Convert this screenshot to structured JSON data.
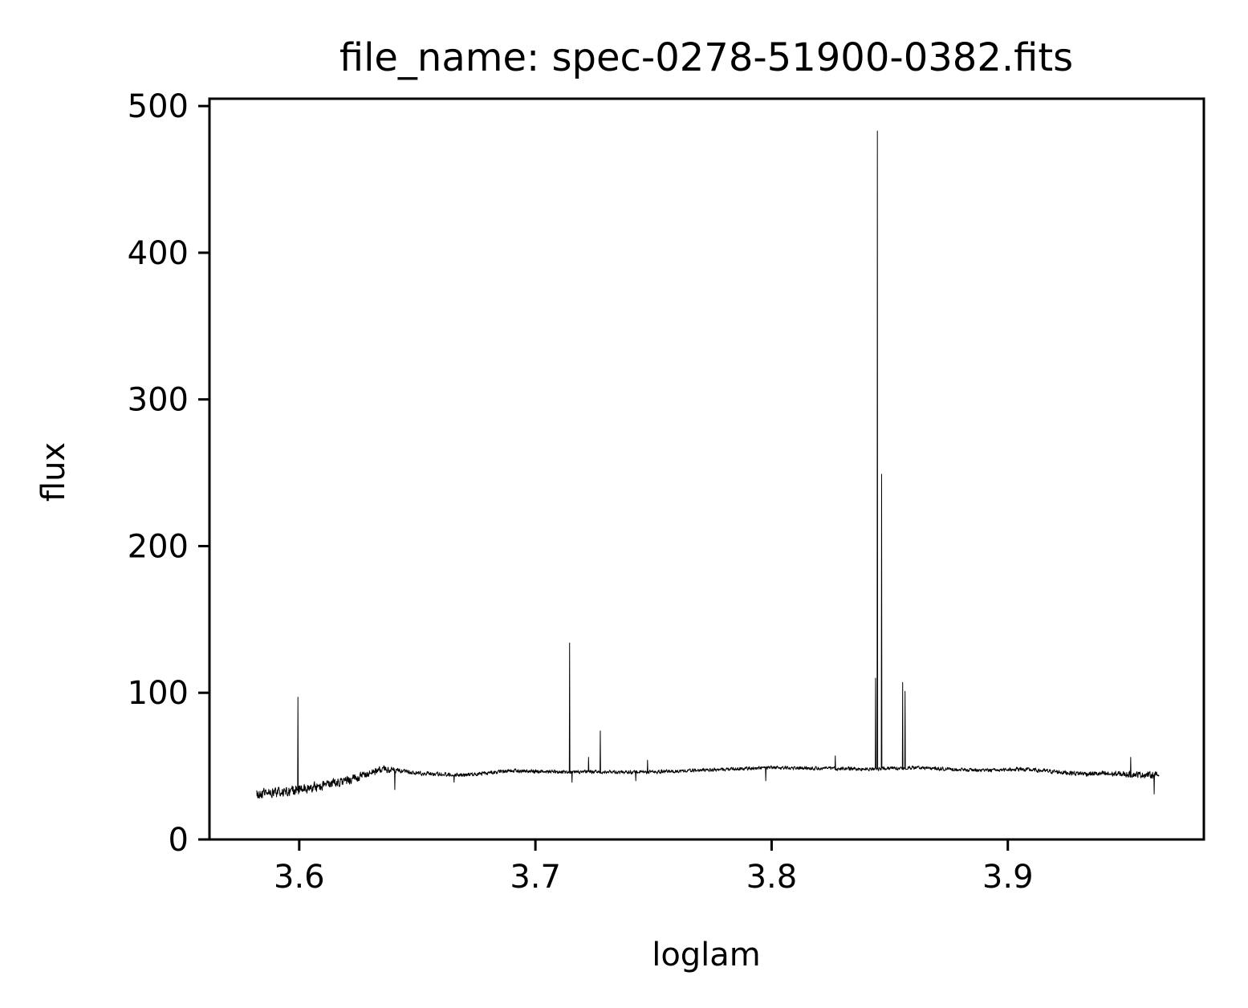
{
  "chart_data": {
    "type": "line",
    "title": "file_name: spec-0278-51900-0382.fits",
    "xlabel": "loglam",
    "ylabel": "flux",
    "xlim": [
      3.562,
      3.983
    ],
    "ylim": [
      0,
      505
    ],
    "xticks": [
      3.6,
      3.7,
      3.8,
      3.9
    ],
    "xtick_labels": [
      "3.6",
      "3.7",
      "3.8",
      "3.9"
    ],
    "yticks": [
      0,
      100,
      200,
      300,
      400,
      500
    ],
    "ytick_labels": [
      "0",
      "100",
      "200",
      "300",
      "400",
      "500"
    ],
    "grid": false,
    "legend": "none",
    "line_color": "#000000",
    "series": [
      {
        "x_start": 3.582,
        "x_end": 3.964,
        "continuum": [
          [
            3.582,
            31
          ],
          [
            3.598,
            33
          ],
          [
            3.61,
            37
          ],
          [
            3.62,
            40
          ],
          [
            3.628,
            44
          ],
          [
            3.635,
            48
          ],
          [
            3.65,
            45
          ],
          [
            3.67,
            44
          ],
          [
            3.69,
            47
          ],
          [
            3.71,
            46
          ],
          [
            3.75,
            46
          ],
          [
            3.8,
            49
          ],
          [
            3.84,
            48
          ],
          [
            3.86,
            49
          ],
          [
            3.89,
            47
          ],
          [
            3.905,
            48
          ],
          [
            3.93,
            45
          ],
          [
            3.964,
            44
          ]
        ],
        "noise": [
          [
            3.582,
            4
          ],
          [
            3.6,
            5
          ],
          [
            3.63,
            3.5
          ],
          [
            3.65,
            1.8
          ],
          [
            3.75,
            1.6
          ],
          [
            3.9,
            1.6
          ],
          [
            3.93,
            2.2
          ],
          [
            3.964,
            3
          ]
        ],
        "peaks": [
          [
            3.5995,
            97
          ],
          [
            3.6655,
            67
          ],
          [
            3.7145,
            134
          ],
          [
            3.7225,
            56
          ],
          [
            3.7275,
            74
          ],
          [
            3.7475,
            54
          ],
          [
            3.7975,
            55
          ],
          [
            3.827,
            57
          ],
          [
            3.844,
            110
          ],
          [
            3.8448,
            483
          ],
          [
            3.8465,
            249
          ],
          [
            3.8555,
            107
          ],
          [
            3.8565,
            101
          ],
          [
            3.952,
            56
          ]
        ],
        "dips": [
          [
            3.6405,
            34
          ],
          [
            3.6655,
            39
          ],
          [
            3.7155,
            39
          ],
          [
            3.7425,
            40
          ],
          [
            3.7975,
            40
          ],
          [
            3.962,
            31
          ]
        ]
      }
    ]
  }
}
